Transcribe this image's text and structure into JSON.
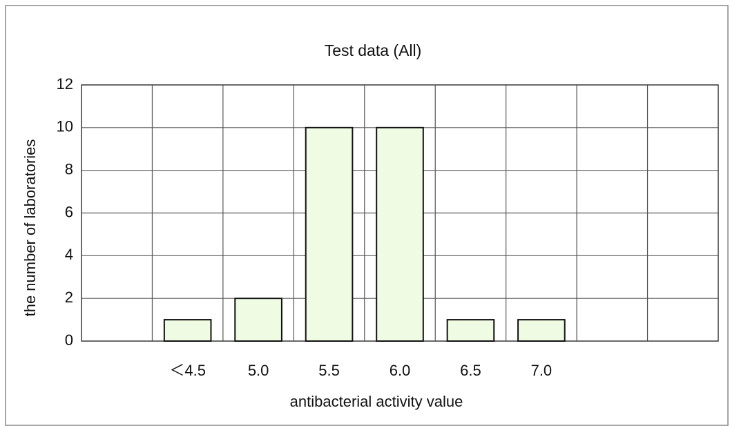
{
  "chart_data": {
    "type": "bar",
    "title": "Test data (All)",
    "x_label": "antibacterial activity value",
    "y_label": "the number of laboratories",
    "categories": [
      null,
      "＜4.5",
      "5.0",
      "5.5",
      "6.0",
      "6.5",
      "7.0",
      null,
      null
    ],
    "values": [
      null,
      1,
      2,
      10,
      10,
      1,
      1,
      null,
      null
    ],
    "color": "#effbe3",
    "ylim": [
      0,
      12
    ],
    "yticks": [
      0,
      2,
      4,
      6,
      8,
      10,
      12
    ],
    "grid": true
  }
}
